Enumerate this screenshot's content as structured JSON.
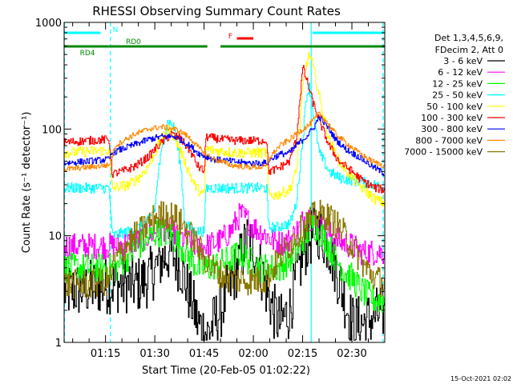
{
  "chart_data": {
    "type": "line",
    "title": "RHESSI Observing Summary Count Rates",
    "xlabel": "Start Time (20-Feb-05 01:02:22)",
    "ylabel": "Count Rate (s⁻¹ detector⁻¹)",
    "y_scale": "log",
    "ylim": [
      1,
      1000
    ],
    "xlim_minutes": [
      62.4,
      160.0
    ],
    "x_ticks": [
      {
        "m": 75,
        "label": "01:15"
      },
      {
        "m": 90,
        "label": "01:30"
      },
      {
        "m": 105,
        "label": "01:45"
      },
      {
        "m": 120,
        "label": "02:00"
      },
      {
        "m": 135,
        "label": "02:15"
      },
      {
        "m": 150,
        "label": "02:30"
      }
    ],
    "y_ticks": [
      {
        "v": 1,
        "label": "1"
      },
      {
        "v": 10,
        "label": "10"
      },
      {
        "v": 100,
        "label": "100"
      },
      {
        "v": 1000,
        "label": "1000"
      }
    ],
    "legend": {
      "header": [
        "Det 1,3,4,5,6,9,",
        "FDecim 2, Att 0"
      ],
      "placement": "right"
    },
    "series": [
      {
        "name": "3 - 6 keV",
        "color": "#000000",
        "points": [
          [
            62.4,
            3
          ],
          [
            78,
            3.5
          ],
          [
            85,
            3.5
          ],
          [
            88,
            4
          ],
          [
            92,
            6
          ],
          [
            95,
            7
          ],
          [
            98,
            5
          ],
          [
            100,
            3
          ],
          [
            102,
            2
          ],
          [
            103,
            1.5
          ],
          [
            106,
            1.2
          ],
          [
            110,
            2
          ],
          [
            113,
            3.5
          ],
          [
            116,
            6
          ],
          [
            118,
            9
          ],
          [
            120,
            8
          ],
          [
            122,
            5
          ],
          [
            124,
            3
          ],
          [
            126,
            2
          ],
          [
            128,
            1.5
          ],
          [
            131,
            2
          ],
          [
            133,
            4
          ],
          [
            136,
            8
          ],
          [
            139,
            12
          ],
          [
            143,
            8
          ],
          [
            147,
            3
          ],
          [
            150,
            1.5
          ],
          [
            153,
            1.5
          ],
          [
            160,
            2
          ]
        ]
      },
      {
        "name": "6 - 12 keV",
        "color": "#ff00ff",
        "points": [
          [
            62.4,
            8
          ],
          [
            70,
            8
          ],
          [
            78,
            8
          ],
          [
            82,
            8.5
          ],
          [
            85,
            9
          ],
          [
            88,
            10
          ],
          [
            90,
            11
          ],
          [
            92,
            12
          ],
          [
            95,
            11
          ],
          [
            98,
            9.5
          ],
          [
            101,
            8.5
          ],
          [
            103,
            8
          ],
          [
            106,
            8
          ],
          [
            110,
            9
          ],
          [
            113,
            11
          ],
          [
            116,
            16
          ],
          [
            118,
            14
          ],
          [
            120,
            12
          ],
          [
            122,
            11
          ],
          [
            124,
            10
          ],
          [
            126,
            9
          ],
          [
            128,
            8.5
          ],
          [
            131,
            9
          ],
          [
            134,
            12
          ],
          [
            136,
            16
          ],
          [
            139,
            13
          ],
          [
            142,
            11
          ],
          [
            146,
            9
          ],
          [
            150,
            8
          ],
          [
            153,
            7
          ],
          [
            157,
            7
          ],
          [
            160,
            7
          ]
        ]
      },
      {
        "name": "12 - 25 keV",
        "color": "#00ff00",
        "points": [
          [
            62.4,
            5
          ],
          [
            70,
            5
          ],
          [
            78,
            5
          ],
          [
            82,
            6.5
          ],
          [
            85,
            8
          ],
          [
            88,
            9.5
          ],
          [
            90,
            10.5
          ],
          [
            92,
            11
          ],
          [
            95,
            10
          ],
          [
            98,
            8
          ],
          [
            101,
            6
          ],
          [
            103,
            5
          ],
          [
            106,
            5
          ],
          [
            110,
            5.5
          ],
          [
            113,
            6
          ],
          [
            116,
            7
          ],
          [
            118,
            6
          ],
          [
            120,
            5.5
          ],
          [
            122,
            5
          ],
          [
            126,
            5
          ],
          [
            128,
            5
          ],
          [
            131,
            6
          ],
          [
            134,
            8
          ],
          [
            136,
            10
          ],
          [
            138,
            13
          ],
          [
            140,
            11
          ],
          [
            142,
            9
          ],
          [
            145,
            6
          ],
          [
            148,
            4.5
          ],
          [
            150,
            4
          ],
          [
            153,
            3
          ],
          [
            157,
            2.5
          ],
          [
            160,
            2.5
          ]
        ]
      },
      {
        "name": "25 - 50 keV",
        "color": "#00ffff",
        "points": [
          [
            62.4,
            28
          ],
          [
            70,
            28
          ],
          [
            75,
            28
          ],
          [
            76,
            28
          ],
          [
            77,
            10
          ],
          [
            82,
            11
          ],
          [
            85,
            12
          ],
          [
            88,
            14
          ],
          [
            90,
            18
          ],
          [
            91,
            40
          ],
          [
            93,
            90
          ],
          [
            94,
            120
          ],
          [
            96,
            100
          ],
          [
            98,
            40
          ],
          [
            99,
            13
          ],
          [
            102,
            11
          ],
          [
            105,
            11
          ],
          [
            105.5,
            28
          ],
          [
            110,
            28
          ],
          [
            115,
            28
          ],
          [
            120,
            28
          ],
          [
            124,
            28
          ],
          [
            124.5,
            12
          ],
          [
            127,
            12
          ],
          [
            131,
            13
          ],
          [
            133,
            20
          ],
          [
            134,
            40
          ],
          [
            135,
            80
          ],
          [
            136,
            200
          ],
          [
            137,
            250
          ],
          [
            138,
            150
          ],
          [
            140,
            60
          ],
          [
            143,
            40
          ],
          [
            146,
            35
          ],
          [
            150,
            33
          ],
          [
            153,
            32
          ],
          [
            157,
            30
          ],
          [
            160,
            28
          ]
        ]
      },
      {
        "name": "50 - 100 keV",
        "color": "#ffff00",
        "points": [
          [
            62.4,
            60
          ],
          [
            70,
            62
          ],
          [
            76,
            63
          ],
          [
            77,
            28
          ],
          [
            82,
            30
          ],
          [
            85,
            35
          ],
          [
            88,
            45
          ],
          [
            91,
            70
          ],
          [
            94,
            100
          ],
          [
            96,
            85
          ],
          [
            99,
            50
          ],
          [
            102,
            30
          ],
          [
            104,
            25
          ],
          [
            105,
            24
          ],
          [
            105.5,
            65
          ],
          [
            110,
            62
          ],
          [
            115,
            60
          ],
          [
            120,
            60
          ],
          [
            124,
            60
          ],
          [
            124.5,
            24
          ],
          [
            127,
            24
          ],
          [
            131,
            27
          ],
          [
            133,
            40
          ],
          [
            135,
            250
          ],
          [
            136,
            400
          ],
          [
            137,
            500
          ],
          [
            138,
            400
          ],
          [
            140,
            200
          ],
          [
            143,
            80
          ],
          [
            146,
            50
          ],
          [
            150,
            35
          ],
          [
            153,
            28
          ],
          [
            157,
            22
          ],
          [
            160,
            20
          ]
        ]
      },
      {
        "name": "100 - 300 keV",
        "color": "#ff0000",
        "points": [
          [
            62.4,
            75
          ],
          [
            70,
            78
          ],
          [
            76,
            80
          ],
          [
            77,
            38
          ],
          [
            80,
            40
          ],
          [
            84,
            45
          ],
          [
            88,
            55
          ],
          [
            91,
            70
          ],
          [
            95,
            90
          ],
          [
            98,
            80
          ],
          [
            101,
            60
          ],
          [
            103,
            45
          ],
          [
            105,
            40
          ],
          [
            105.5,
            85
          ],
          [
            110,
            80
          ],
          [
            115,
            78
          ],
          [
            120,
            78
          ],
          [
            124,
            78
          ],
          [
            124.5,
            40
          ],
          [
            127,
            42
          ],
          [
            131,
            50
          ],
          [
            133,
            80
          ],
          [
            135,
            380
          ],
          [
            136,
            300
          ],
          [
            138,
            180
          ],
          [
            140,
            120
          ],
          [
            143,
            70
          ],
          [
            146,
            50
          ],
          [
            150,
            40
          ],
          [
            153,
            33
          ],
          [
            157,
            28
          ],
          [
            160,
            27
          ]
        ]
      },
      {
        "name": "300 - 800 keV",
        "color": "#0000ff",
        "points": [
          [
            62.4,
            48
          ],
          [
            70,
            50
          ],
          [
            76,
            52
          ],
          [
            77,
            60
          ],
          [
            80,
            65
          ],
          [
            84,
            72
          ],
          [
            88,
            80
          ],
          [
            92,
            85
          ],
          [
            96,
            85
          ],
          [
            99,
            75
          ],
          [
            101,
            68
          ],
          [
            103,
            60
          ],
          [
            105,
            56
          ],
          [
            108,
            52
          ],
          [
            113,
            50
          ],
          [
            118,
            48
          ],
          [
            122,
            48
          ],
          [
            124,
            48
          ],
          [
            125,
            52
          ],
          [
            128,
            58
          ],
          [
            131,
            60
          ],
          [
            133,
            70
          ],
          [
            135,
            80
          ],
          [
            136,
            85
          ],
          [
            138,
            100
          ],
          [
            140,
            130
          ],
          [
            142,
            110
          ],
          [
            145,
            80
          ],
          [
            148,
            65
          ],
          [
            152,
            55
          ],
          [
            156,
            45
          ],
          [
            160,
            38
          ]
        ]
      },
      {
        "name": "800 - 7000 keV",
        "color": "#ff8800",
        "points": [
          [
            62.4,
            42
          ],
          [
            70,
            44
          ],
          [
            76,
            46
          ],
          [
            78,
            70
          ],
          [
            81,
            80
          ],
          [
            84,
            90
          ],
          [
            88,
            100
          ],
          [
            92,
            105
          ],
          [
            96,
            100
          ],
          [
            99,
            90
          ],
          [
            101,
            80
          ],
          [
            103,
            68
          ],
          [
            105,
            60
          ],
          [
            108,
            52
          ],
          [
            113,
            46
          ],
          [
            118,
            44
          ],
          [
            122,
            44
          ],
          [
            124,
            45
          ],
          [
            125,
            55
          ],
          [
            128,
            70
          ],
          [
            131,
            80
          ],
          [
            134,
            95
          ],
          [
            137,
            110
          ],
          [
            140,
            140
          ],
          [
            142,
            120
          ],
          [
            145,
            90
          ],
          [
            148,
            75
          ],
          [
            152,
            60
          ],
          [
            156,
            50
          ],
          [
            160,
            45
          ]
        ]
      },
      {
        "name": "7000 - 15000 keV",
        "color": "#8b7800",
        "points": [
          [
            62.4,
            3.5
          ],
          [
            70,
            3.5
          ],
          [
            76,
            3.8
          ],
          [
            78,
            6
          ],
          [
            81,
            8
          ],
          [
            84,
            10
          ],
          [
            87,
            12
          ],
          [
            90,
            15
          ],
          [
            93,
            16
          ],
          [
            96,
            15
          ],
          [
            99,
            12
          ],
          [
            102,
            9
          ],
          [
            104,
            7
          ],
          [
            107,
            5
          ],
          [
            112,
            4
          ],
          [
            118,
            3.8
          ],
          [
            122,
            3.8
          ],
          [
            124,
            4
          ],
          [
            126,
            5
          ],
          [
            129,
            7
          ],
          [
            132,
            9
          ],
          [
            135,
            12
          ],
          [
            138,
            15
          ],
          [
            141,
            16
          ],
          [
            144,
            14
          ],
          [
            147,
            11
          ],
          [
            150,
            8
          ],
          [
            154,
            5
          ],
          [
            157,
            4
          ],
          [
            160,
            3.5
          ]
        ]
      }
    ],
    "state_bars": [
      {
        "label": "N",
        "color": "#00ffff",
        "segments": [
          [
            62.4,
            73.5
          ],
          [
            138,
            160
          ]
        ]
      },
      {
        "label": "F",
        "color": "#ff0000",
        "segments": [
          [
            115,
            120
          ]
        ]
      },
      {
        "label": "RD0",
        "color": "#008800",
        "segments": [
          [
            76,
            106
          ],
          [
            110,
            124
          ],
          [
            124,
            160
          ]
        ]
      },
      {
        "label": "RD4",
        "color": "#008800",
        "segments": [
          [
            62.4,
            76
          ]
        ]
      }
    ],
    "vertical_markers": [
      {
        "m": 62.5,
        "color": "#00ffff",
        "style": "dashed"
      },
      {
        "m": 76.5,
        "color": "#00ffff",
        "style": "dashed"
      },
      {
        "m": 137.6,
        "color": "#00ffff",
        "style": "solid"
      },
      {
        "m": 159.5,
        "color": "#00ffff",
        "style": "dashed"
      }
    ],
    "timestamp": "15-Oct-2021 02:02"
  }
}
